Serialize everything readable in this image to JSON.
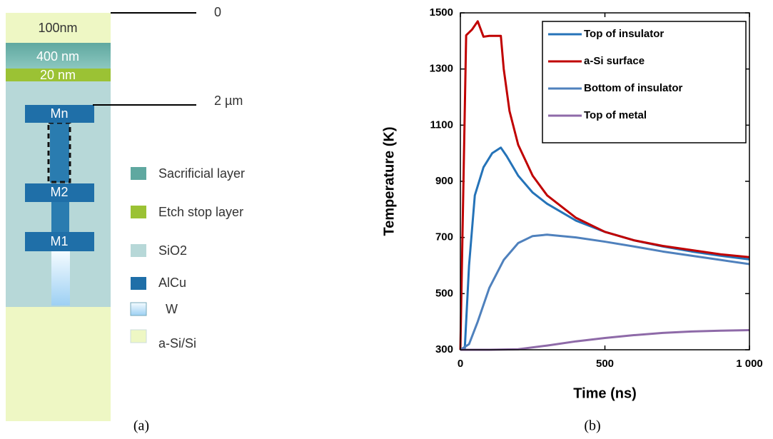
{
  "diagram": {
    "layers": {
      "top": "100nm",
      "sacrificial": "400 nm",
      "etch_stop": "20 nm"
    },
    "metals": [
      "Mn",
      "M2",
      "M1"
    ],
    "markers": [
      "0",
      "2 µm"
    ],
    "legend": [
      "Sacrificial layer",
      "Etch stop layer",
      "SiO2",
      "AlCu",
      "W",
      "a-Si/Si"
    ]
  },
  "captions": [
    "(a)",
    "(b)"
  ],
  "chart_data": {
    "type": "line",
    "xlabel": "Time (ns)",
    "ylabel": "Temperature (K)",
    "xlim": [
      0,
      1000
    ],
    "ylim": [
      300,
      1500
    ],
    "xticks": [
      0,
      500,
      {
        "value": 1000,
        "label": "1 000"
      }
    ],
    "yticks": [
      300,
      500,
      700,
      900,
      1100,
      1300,
      1500
    ],
    "legend": "upper right",
    "series": [
      {
        "name": "Top of insulator",
        "color": "#2573b8",
        "x": [
          0,
          15,
          30,
          50,
          80,
          110,
          140,
          160,
          200,
          250,
          300,
          400,
          500,
          600,
          700,
          800,
          900,
          1000
        ],
        "values": [
          300,
          300,
          600,
          850,
          950,
          1000,
          1020,
          990,
          920,
          860,
          820,
          760,
          720,
          690,
          668,
          650,
          635,
          622
        ]
      },
      {
        "name": "a-Si surface",
        "color": "#c00000",
        "x": [
          0,
          20,
          40,
          60,
          80,
          100,
          140,
          150,
          170,
          200,
          250,
          300,
          400,
          500,
          600,
          700,
          800,
          900,
          1000
        ],
        "values": [
          300,
          1420,
          1440,
          1470,
          1415,
          1418,
          1418,
          1300,
          1150,
          1030,
          920,
          850,
          770,
          720,
          690,
          670,
          655,
          640,
          630
        ]
      },
      {
        "name": "Bottom of insulator",
        "color": "#4f81bd",
        "x": [
          0,
          30,
          60,
          100,
          150,
          200,
          250,
          300,
          400,
          500,
          600,
          700,
          800,
          900,
          1000
        ],
        "values": [
          300,
          320,
          400,
          520,
          620,
          680,
          705,
          710,
          700,
          685,
          668,
          650,
          635,
          620,
          605
        ]
      },
      {
        "name": "Top of metal",
        "color": "#8e6aa8",
        "x": [
          0,
          100,
          200,
          300,
          400,
          500,
          600,
          700,
          800,
          900,
          1000
        ],
        "values": [
          300,
          300,
          302,
          315,
          330,
          342,
          352,
          360,
          365,
          368,
          370
        ]
      }
    ]
  }
}
